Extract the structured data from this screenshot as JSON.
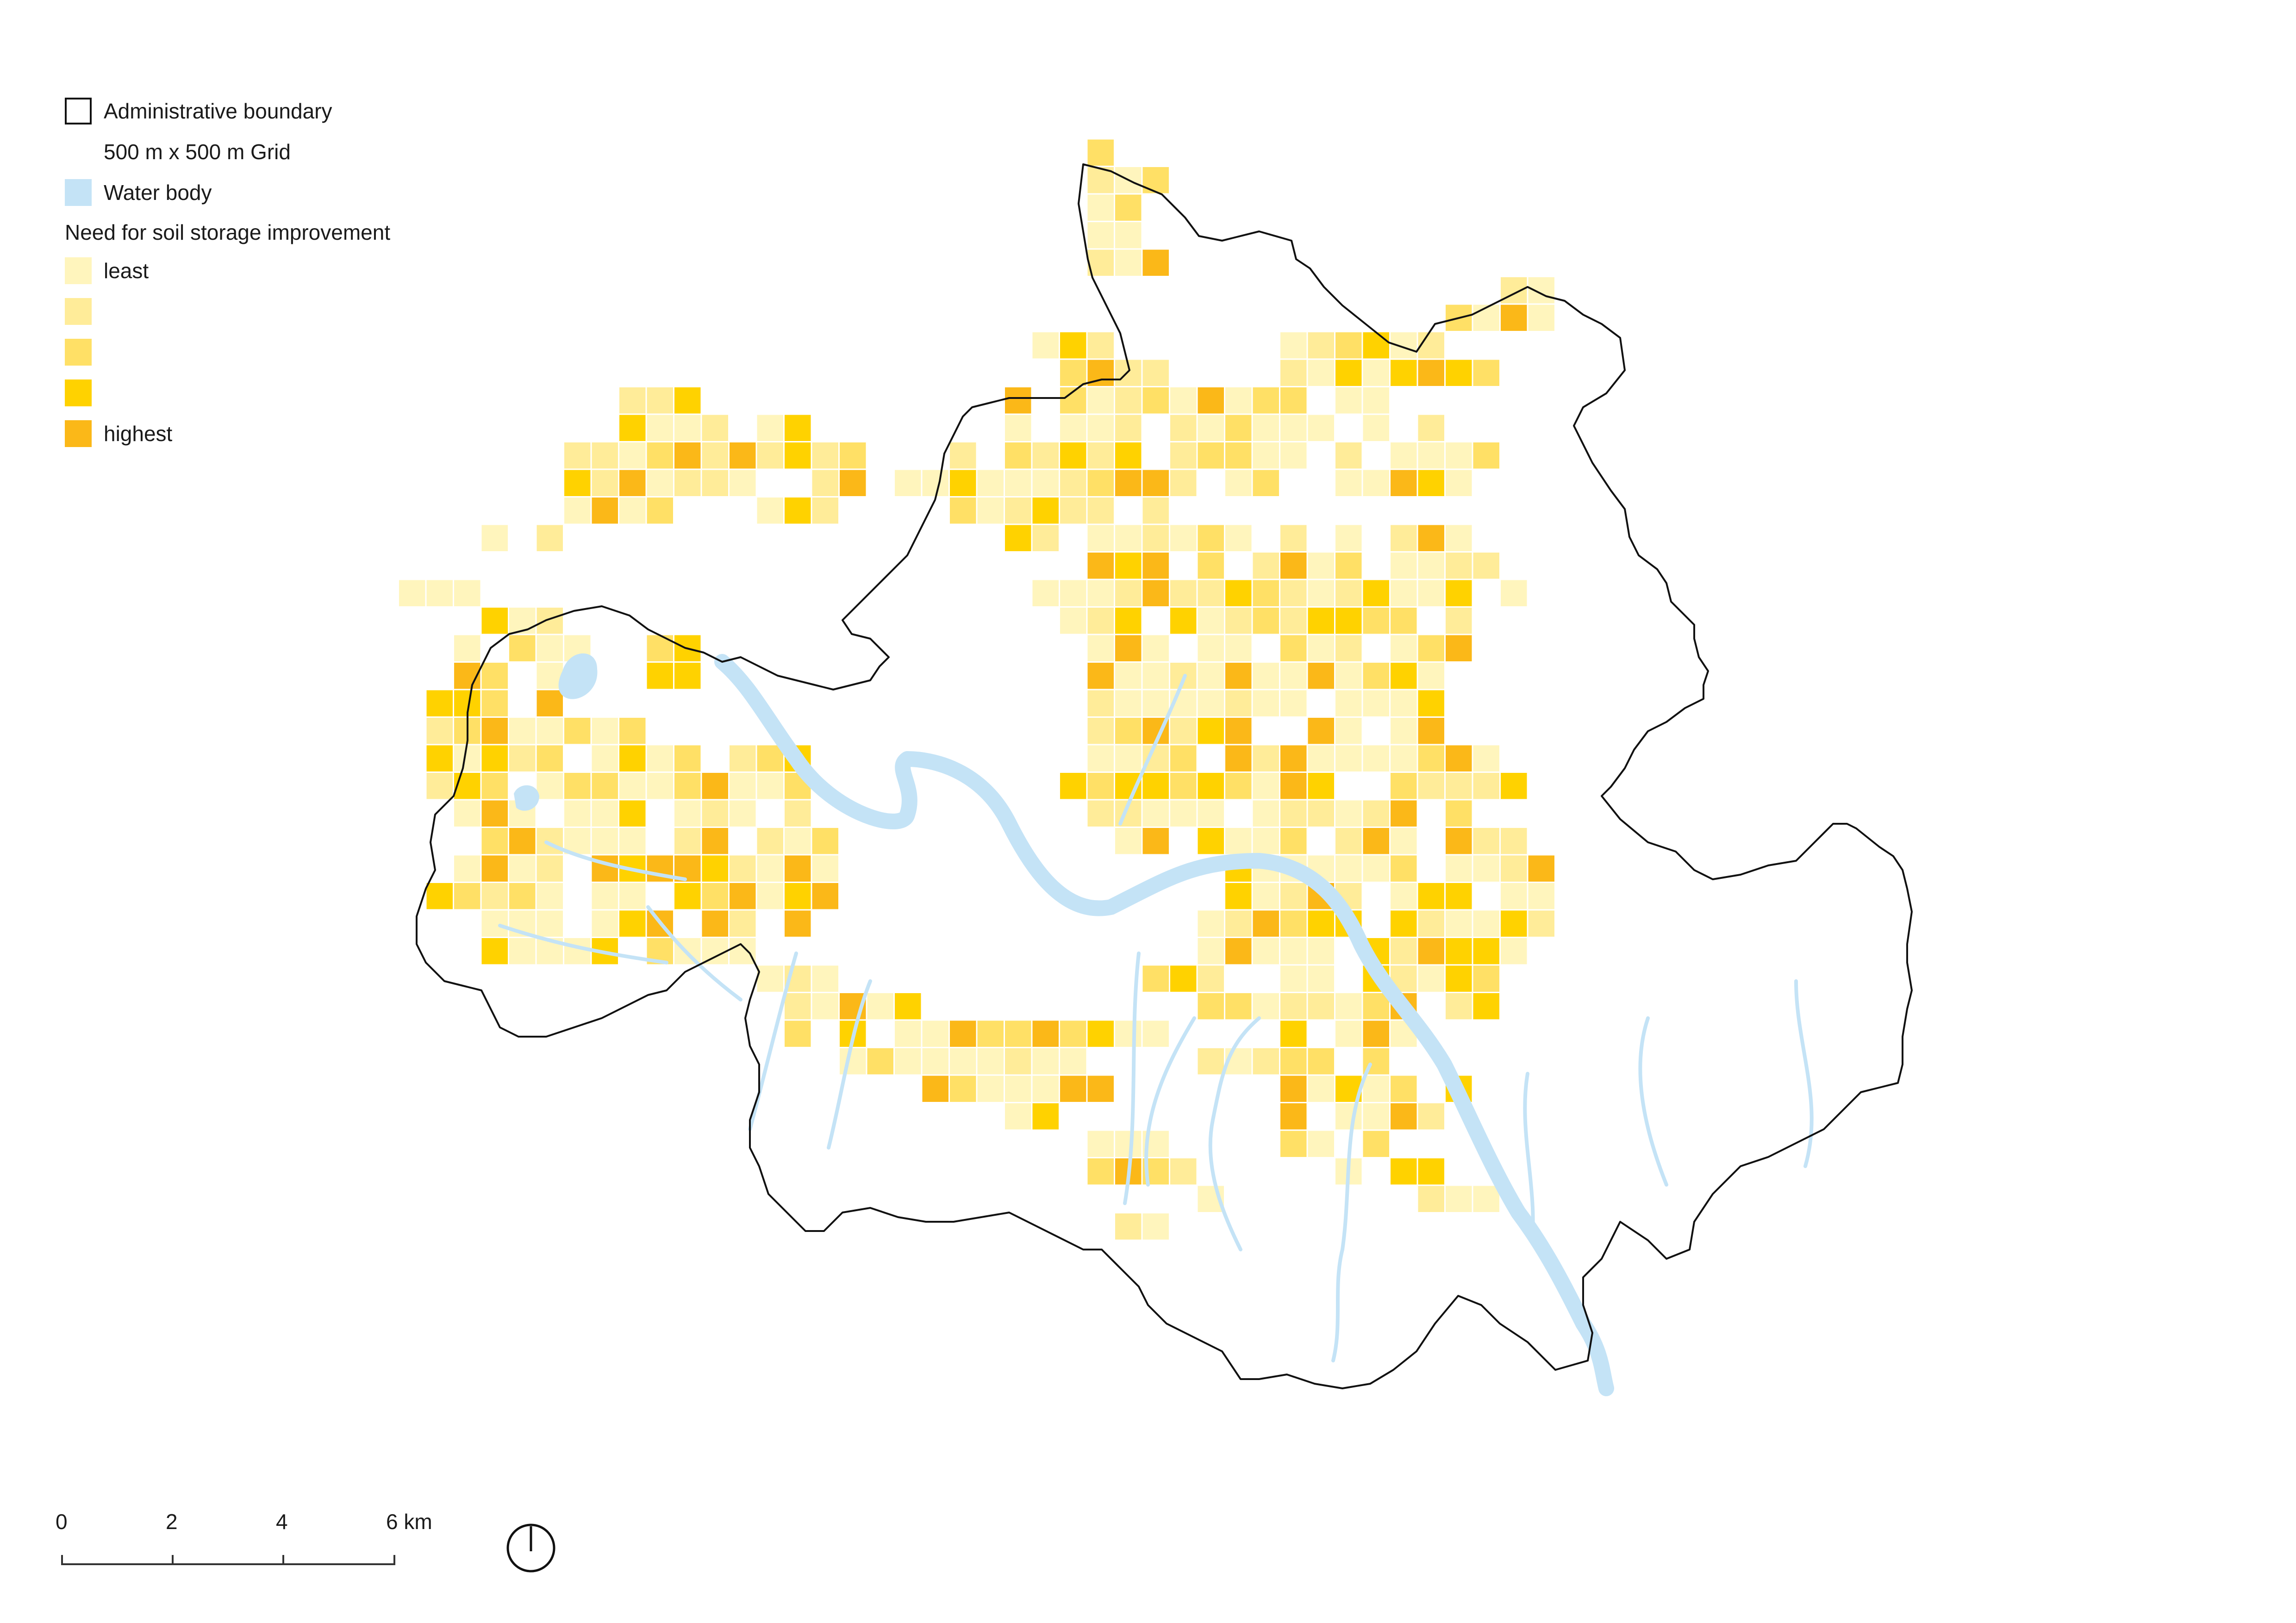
{
  "legend": {
    "boundary_label": "Administrative boundary",
    "grid_label": "500 m x 500 m Grid",
    "water_label": "Water body",
    "heading": "Need for soil storage improvement",
    "classes": [
      {
        "label": "least",
        "color": "#fff5bd"
      },
      {
        "label": "",
        "color": "#ffec99"
      },
      {
        "label": "",
        "color": "#ffe066"
      },
      {
        "label": "",
        "color": "#ffd200"
      },
      {
        "label": "highest",
        "color": "#fbb818"
      }
    ]
  },
  "colors": {
    "water": "#c4e3f6",
    "boundary": "#111111",
    "grid_line": "#ffffff"
  },
  "scale": {
    "ticks": [
      "0",
      "2",
      "4",
      "6 km"
    ]
  },
  "north_arrow": {
    "icon": "north-arrow-icon"
  }
}
